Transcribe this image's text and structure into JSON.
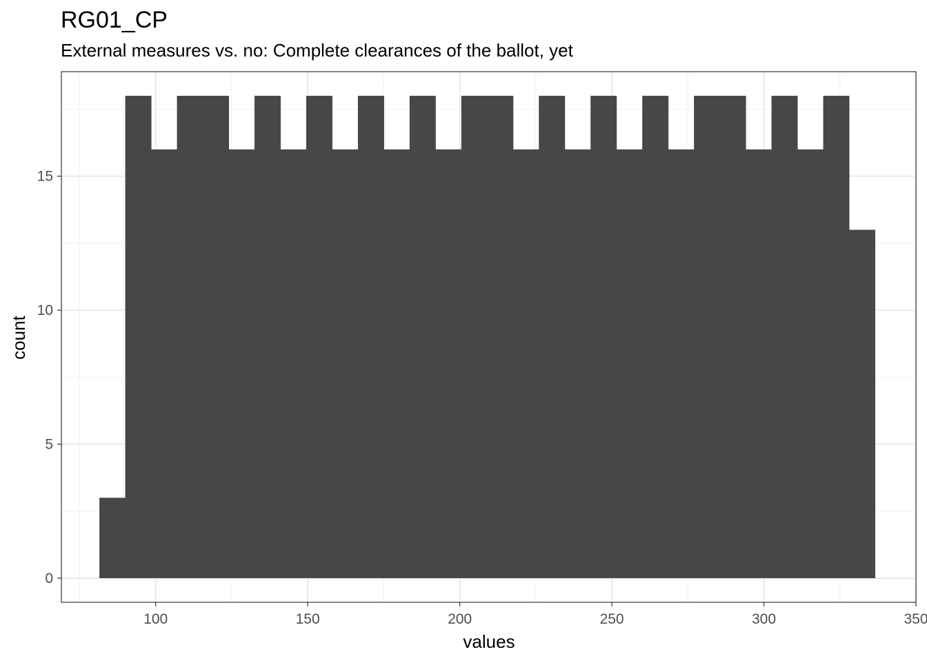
{
  "chart_data": {
    "type": "bar",
    "title": "RG01_CP",
    "subtitle": "External measures vs. no: Complete clearances of the ballot, yet",
    "xlabel": "values",
    "ylabel": "count",
    "xlim": [
      69,
      350
    ],
    "ylim": [
      -0.9,
      18.9
    ],
    "x_ticks": [
      100,
      150,
      200,
      250,
      300,
      350
    ],
    "x_tick_labels": [
      "100",
      "150",
      "200",
      "250",
      "300",
      "350"
    ],
    "y_ticks": [
      0,
      5,
      10,
      15
    ],
    "y_tick_labels": [
      "0",
      "5",
      "10",
      "15"
    ],
    "grid": true,
    "bins": [
      {
        "x0": 81.5,
        "x1": 90.0,
        "count": 3
      },
      {
        "x0": 90.0,
        "x1": 98.5,
        "count": 18
      },
      {
        "x0": 98.5,
        "x1": 107.0,
        "count": 16
      },
      {
        "x0": 107.0,
        "x1": 115.5,
        "count": 18
      },
      {
        "x0": 115.5,
        "x1": 124.0,
        "count": 18
      },
      {
        "x0": 124.0,
        "x1": 132.5,
        "count": 16
      },
      {
        "x0": 132.5,
        "x1": 141.0,
        "count": 18
      },
      {
        "x0": 141.0,
        "x1": 149.5,
        "count": 16
      },
      {
        "x0": 149.5,
        "x1": 158.0,
        "count": 18
      },
      {
        "x0": 158.0,
        "x1": 166.5,
        "count": 16
      },
      {
        "x0": 166.5,
        "x1": 175.0,
        "count": 18
      },
      {
        "x0": 175.0,
        "x1": 183.5,
        "count": 16
      },
      {
        "x0": 183.5,
        "x1": 192.0,
        "count": 18
      },
      {
        "x0": 192.0,
        "x1": 200.5,
        "count": 16
      },
      {
        "x0": 200.5,
        "x1": 209.0,
        "count": 18
      },
      {
        "x0": 209.0,
        "x1": 217.5,
        "count": 18
      },
      {
        "x0": 217.5,
        "x1": 226.0,
        "count": 16
      },
      {
        "x0": 226.0,
        "x1": 234.5,
        "count": 18
      },
      {
        "x0": 234.5,
        "x1": 243.0,
        "count": 16
      },
      {
        "x0": 243.0,
        "x1": 251.5,
        "count": 18
      },
      {
        "x0": 251.5,
        "x1": 260.0,
        "count": 16
      },
      {
        "x0": 260.0,
        "x1": 268.5,
        "count": 18
      },
      {
        "x0": 268.5,
        "x1": 277.0,
        "count": 16
      },
      {
        "x0": 277.0,
        "x1": 285.5,
        "count": 18
      },
      {
        "x0": 285.5,
        "x1": 294.0,
        "count": 18
      },
      {
        "x0": 294.0,
        "x1": 302.5,
        "count": 16
      },
      {
        "x0": 302.5,
        "x1": 311.0,
        "count": 18
      },
      {
        "x0": 311.0,
        "x1": 319.5,
        "count": 16
      },
      {
        "x0": 319.5,
        "x1": 328.0,
        "count": 18
      },
      {
        "x0": 328.0,
        "x1": 336.5,
        "count": 13
      }
    ],
    "colors": {
      "bar": "#474747",
      "panel_border": "#333333",
      "grid_major": "#ebebeb",
      "grid_minor": "#f2f2f2",
      "tick_label": "#4d4d4d"
    }
  }
}
